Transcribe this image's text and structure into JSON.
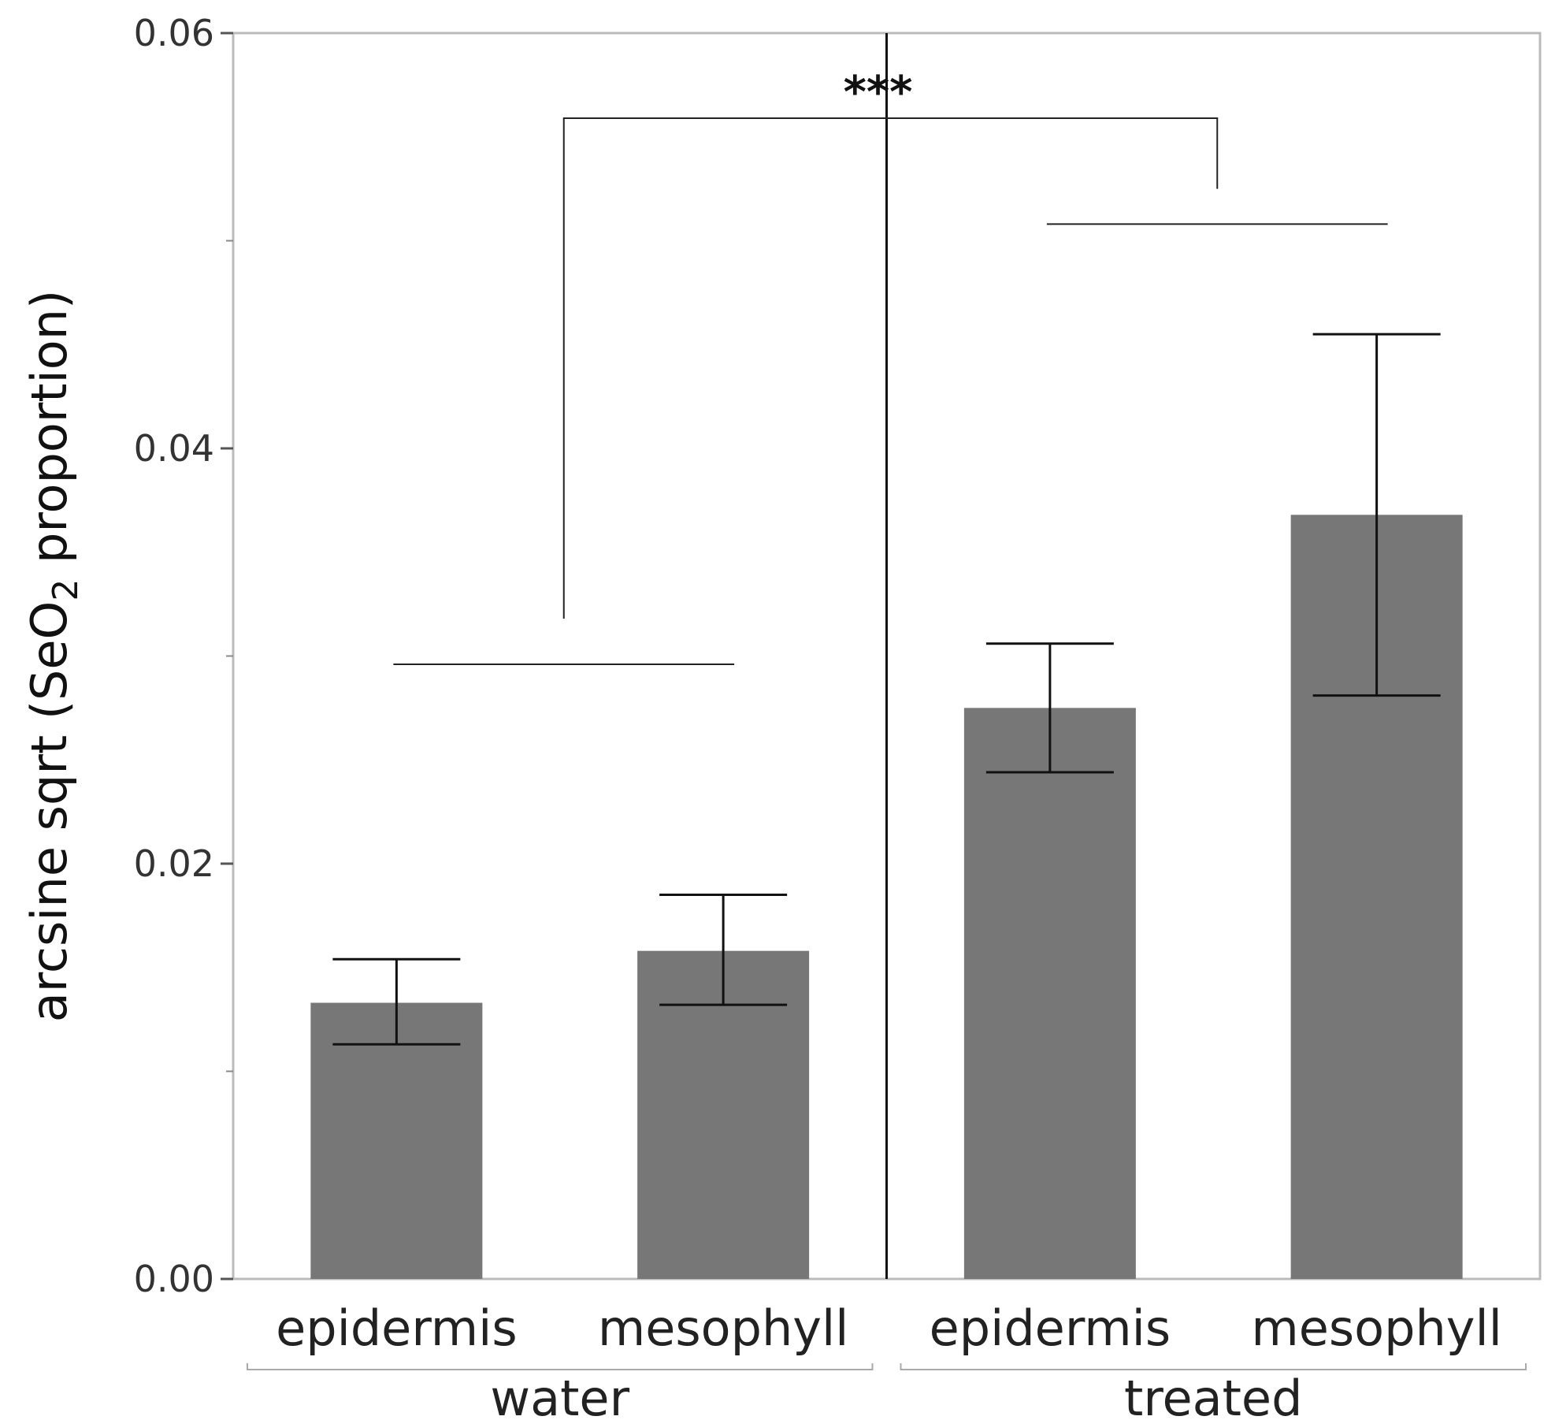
{
  "chart_data": {
    "type": "bar",
    "title": "",
    "xlabel": "",
    "ylabel": "arcsine sqrt (SeO",
    "ylabel_subscript": "2",
    "ylabel_suffix": " proportion)",
    "ylim": [
      0,
      0.06
    ],
    "y_ticks": [
      "0.00",
      "0.02",
      "0.04",
      "0.06"
    ],
    "y_tick_values": [
      0,
      0.02,
      0.04,
      0.06
    ],
    "minor_tick_values": [
      0.01,
      0.03,
      0.05
    ],
    "grid": false,
    "groups": [
      {
        "name": "water",
        "bars": [
          {
            "category": "epidermis",
            "value": 0.0133,
            "err_low": 0.0113,
            "err_high": 0.0154
          },
          {
            "category": "mesophyll",
            "value": 0.0158,
            "err_low": 0.0132,
            "err_high": 0.0185
          }
        ]
      },
      {
        "name": "treated",
        "bars": [
          {
            "category": "epidermis",
            "value": 0.0275,
            "err_low": 0.0244,
            "err_high": 0.0306
          },
          {
            "category": "mesophyll",
            "value": 0.0368,
            "err_low": 0.0281,
            "err_high": 0.0455
          }
        ]
      }
    ],
    "significance": {
      "label": "***",
      "group_a": "water",
      "group_b": "treated",
      "group_a_line_value": 0.0296,
      "group_b_line_value": 0.0508,
      "bracket_value": 0.0559,
      "bracket_a_drop_value": 0.0318,
      "bracket_b_drop_value": 0.0525
    },
    "colors": {
      "bar": "#777777",
      "error": "#111111",
      "axis": "#bbbbbb",
      "divider": "#111111"
    }
  }
}
